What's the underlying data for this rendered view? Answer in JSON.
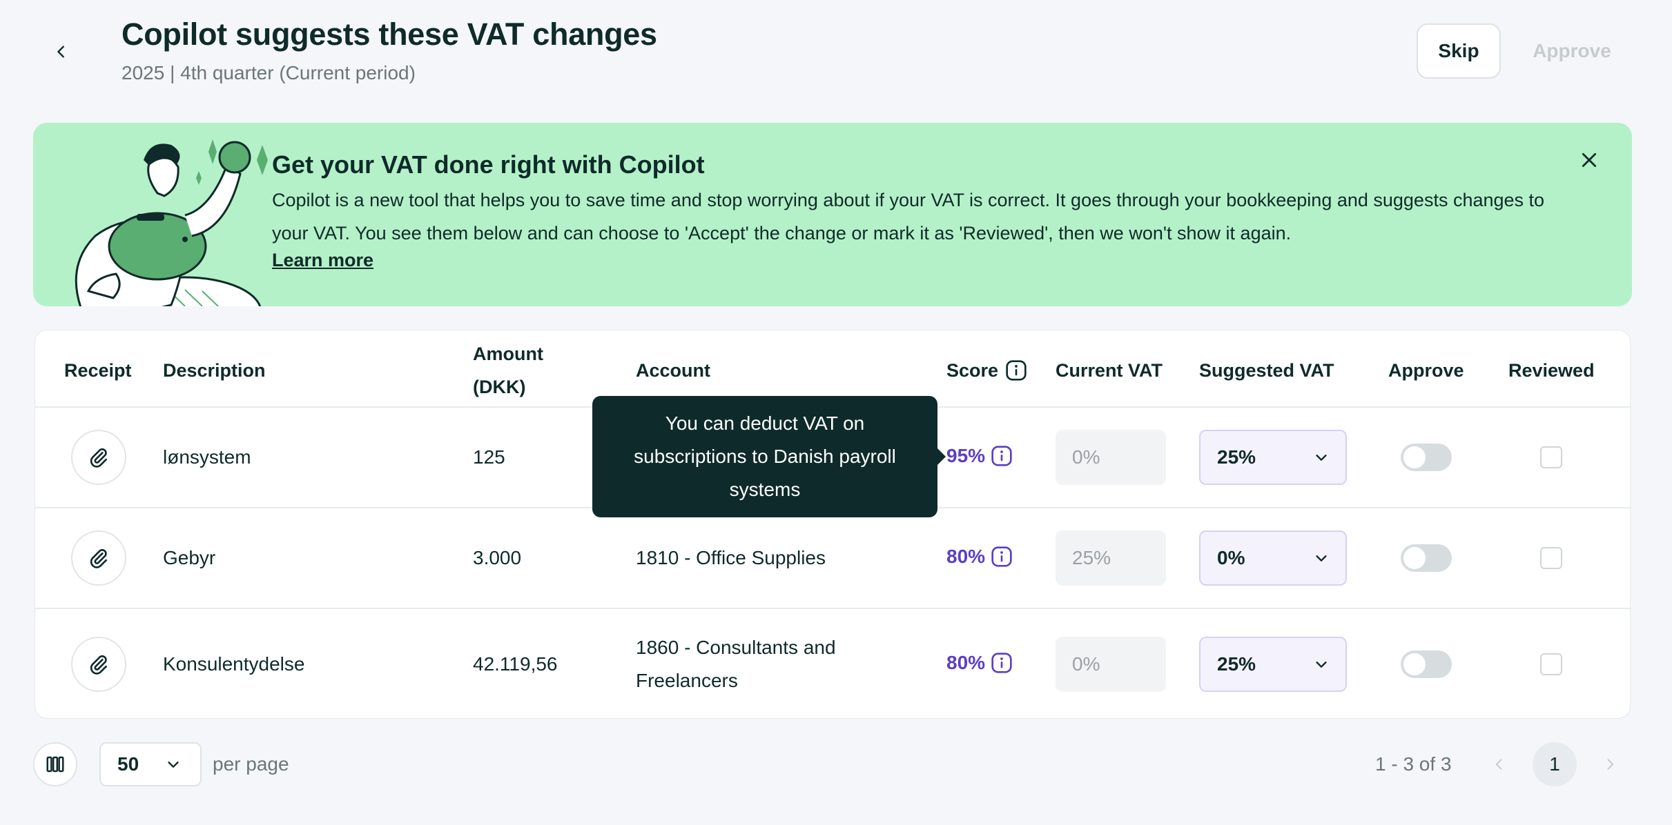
{
  "header": {
    "title": "Copilot suggests these VAT changes",
    "subtitle": "2025 | 4th quarter (Current period)",
    "skip_label": "Skip",
    "approve_label": "Approve"
  },
  "banner": {
    "title": "Get your VAT done right with Copilot",
    "text": "Copilot is a new tool that helps you to save time and stop worrying about if your VAT is correct. It goes through your bookkeeping and suggests changes to your VAT. You see them below and can choose to 'Accept' the change or mark it as 'Reviewed', then we won't show it again.",
    "link_label": "Learn more"
  },
  "table": {
    "columns": {
      "receipt": "Receipt",
      "description": "Description",
      "amount_line1": "Amount",
      "amount_line2": "(DKK)",
      "account": "Account",
      "score": "Score",
      "current_vat": "Current VAT",
      "suggested_vat": "Suggested VAT",
      "approve": "Approve",
      "reviewed": "Reviewed"
    },
    "rows": [
      {
        "description": "lønsystem",
        "amount": "125",
        "account_line1": "",
        "account_line2": "",
        "score": "95%",
        "current_vat": "0%",
        "suggested_vat": "25%"
      },
      {
        "description": "Gebyr",
        "amount": "3.000",
        "account_line1": "1810 - Office Supplies",
        "account_line2": "",
        "score": "80%",
        "current_vat": "25%",
        "suggested_vat": "0%"
      },
      {
        "description": "Konsulentydelse",
        "amount": "42.119,56",
        "account_line1": "1860 - Consultants and",
        "account_line2": "Freelancers",
        "score": "80%",
        "current_vat": "0%",
        "suggested_vat": "25%"
      }
    ]
  },
  "tooltip": {
    "text": "You can deduct VAT on subscriptions to Danish payroll systems"
  },
  "footer": {
    "per_page_value": "50",
    "per_page_label": "per page",
    "range": "1 - 3 of 3",
    "current_page": "1"
  },
  "colors": {
    "banner_bg": "#b4f1c8",
    "score": "#5b3fc4",
    "dark": "#0f2a2a"
  }
}
